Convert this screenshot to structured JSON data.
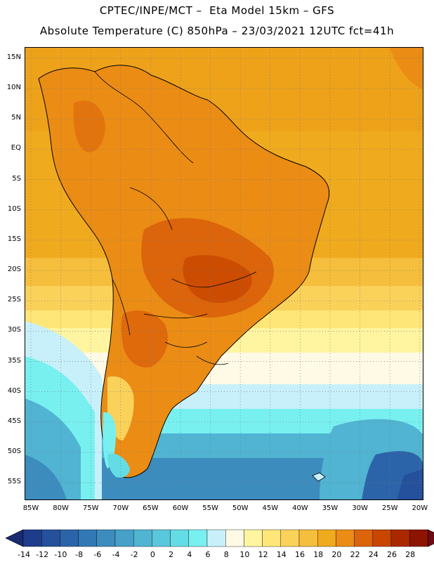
{
  "header": {
    "line1": "CPTEC/INPE/MCT –  Eta Model 15km – GFS",
    "line2": "Absolute Temperature (C) 850hPa – 23/03/2021 12UTC fct=41h"
  },
  "map": {
    "region": "South America",
    "latitude_labels": [
      "15N",
      "10N",
      "5N",
      "EQ",
      "5S",
      "10S",
      "15S",
      "20S",
      "25S",
      "30S",
      "35S",
      "40S",
      "45S",
      "50S",
      "55S"
    ],
    "longitude_labels": [
      "85W",
      "80W",
      "75W",
      "70W",
      "65W",
      "60W",
      "55W",
      "50W",
      "45W",
      "40W",
      "35W",
      "30W",
      "25W",
      "20W"
    ],
    "gridlines": true,
    "colors": {
      "land_border": "#000000",
      "grid": "#7a7a7a"
    }
  },
  "colorbar": {
    "tick_labels": [
      "-14",
      "-12",
      "-10",
      "-8",
      "-6",
      "-4",
      "-2",
      "0",
      "2",
      "4",
      "6",
      "8",
      "10",
      "12",
      "14",
      "16",
      "18",
      "20",
      "22",
      "24",
      "26",
      "28"
    ],
    "bins": [
      "#1e3c8c",
      "#25509b",
      "#2c64aa",
      "#3278b4",
      "#3c8cbe",
      "#46a0c8",
      "#50b4d2",
      "#5ac8dc",
      "#64dce6",
      "#78f0f0",
      "#c8f0fa",
      "#fffae6",
      "#fff5a0",
      "#ffe678",
      "#fad25a",
      "#f5be3c",
      "#f0aa1e",
      "#eb8c14",
      "#dc640a",
      "#c84600",
      "#aa2800",
      "#8c1400"
    ],
    "under_color": "#1a2a70",
    "over_color": "#6e0a14"
  }
}
